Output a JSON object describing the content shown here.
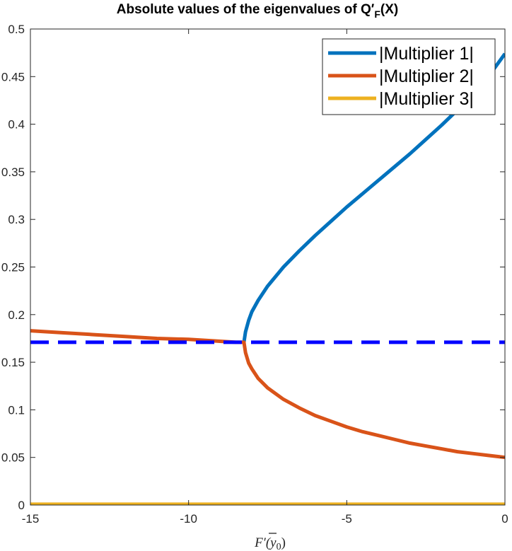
{
  "chart_data": {
    "type": "line",
    "title": {
      "prefix": "Absolute values of the eigenvalues of Q",
      "prime": "′",
      "subscript": "F",
      "suffix": "(X)"
    },
    "xlabel": {
      "main": "F′(",
      "ybar": "y",
      "subscript": "0",
      "close": ")"
    },
    "ylabel": "",
    "xlim": [
      -15,
      0
    ],
    "ylim": [
      0,
      0.5
    ],
    "xticks": [
      -15,
      -10,
      -5,
      0
    ],
    "xtick_labels": [
      "-15",
      "-10",
      "-5",
      "0"
    ],
    "yticks": [
      0,
      0.05,
      0.1,
      0.15,
      0.2,
      0.25,
      0.3,
      0.35,
      0.4,
      0.45,
      0.5
    ],
    "ytick_labels": [
      "0",
      "0.05",
      "0.1",
      "0.15",
      "0.2",
      "0.25",
      "0.3",
      "0.35",
      "0.4",
      "0.45",
      "0.5"
    ],
    "grid": false,
    "legend_position": "top-right",
    "series": [
      {
        "name": "|Multiplier 1|",
        "color": "#0072BD",
        "x": [
          -8.25,
          -8.2,
          -8.1,
          -8.0,
          -7.8,
          -7.5,
          -7.0,
          -6.5,
          -6.0,
          -5.5,
          -5.0,
          -4.5,
          -4.0,
          -3.5,
          -3.0,
          -2.5,
          -2.0,
          -1.5,
          -1.0,
          -0.5,
          0
        ],
        "y": [
          0.171,
          0.182,
          0.194,
          0.203,
          0.215,
          0.23,
          0.25,
          0.267,
          0.283,
          0.298,
          0.313,
          0.327,
          0.341,
          0.355,
          0.369,
          0.384,
          0.399,
          0.415,
          0.432,
          0.451,
          0.474
        ]
      },
      {
        "name": "|Multiplier 2|",
        "color": "#D95319",
        "x": [
          -15,
          -14,
          -13,
          -12,
          -11,
          -10,
          -9,
          -8.5,
          -8.25,
          -8.2,
          -8.1,
          -8.0,
          -7.8,
          -7.5,
          -7.0,
          -6.5,
          -6.0,
          -5.5,
          -5.0,
          -4.5,
          -4.0,
          -3.5,
          -3.0,
          -2.5,
          -2.0,
          -1.5,
          -1.0,
          -0.5,
          0
        ],
        "y": [
          0.183,
          0.181,
          0.179,
          0.177,
          0.175,
          0.174,
          0.172,
          0.171,
          0.171,
          0.16,
          0.149,
          0.143,
          0.133,
          0.123,
          0.111,
          0.102,
          0.094,
          0.088,
          0.082,
          0.077,
          0.073,
          0.069,
          0.065,
          0.062,
          0.059,
          0.056,
          0.054,
          0.052,
          0.05
        ]
      },
      {
        "name": "|Multiplier 3|",
        "color": "#EDB120",
        "x": [
          -15,
          0
        ],
        "y": [
          0.0008,
          0.0008
        ]
      }
    ],
    "reference_line": {
      "y": 0.171,
      "color": "#0000FF",
      "style": "dashed"
    }
  }
}
